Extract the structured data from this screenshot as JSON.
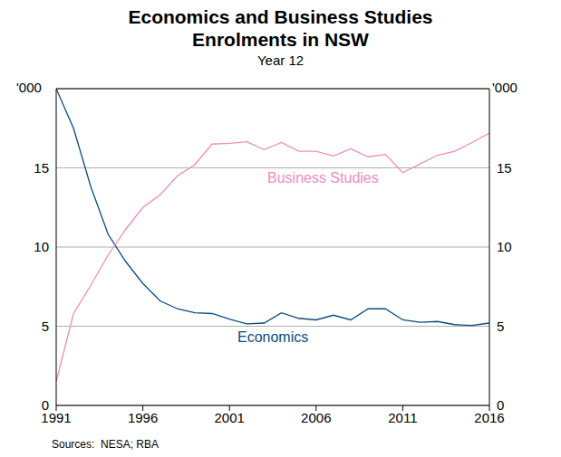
{
  "chart_data": {
    "type": "line",
    "title": "Economics and Business Studies Enrolments in NSW",
    "subtitle": "Year 12",
    "y_label": "'000",
    "source": "Sources:  NESA; RBA",
    "x": [
      1991,
      1992,
      1993,
      1994,
      1995,
      1996,
      1997,
      1998,
      1999,
      2000,
      2001,
      2002,
      2003,
      2004,
      2005,
      2006,
      2007,
      2008,
      2009,
      2010,
      2011,
      2012,
      2013,
      2014,
      2015,
      2016
    ],
    "series": [
      {
        "name": "Economics",
        "color": "#0b4a7d",
        "values": [
          20.0,
          17.5,
          13.8,
          10.8,
          9.1,
          7.7,
          6.6,
          6.1,
          5.85,
          5.8,
          5.45,
          5.15,
          5.2,
          5.85,
          5.5,
          5.4,
          5.7,
          5.4,
          6.1,
          6.1,
          5.4,
          5.25,
          5.3,
          5.1,
          5.05,
          5.2
        ]
      },
      {
        "name": "Business Studies",
        "color": "#f08cbd",
        "values": [
          1.5,
          5.8,
          7.6,
          9.5,
          11.1,
          12.5,
          13.3,
          14.5,
          15.2,
          16.5,
          16.55,
          16.65,
          16.15,
          16.6,
          16.05,
          16.05,
          15.75,
          16.2,
          15.7,
          15.85,
          14.7,
          15.25,
          15.8,
          16.05,
          16.6,
          17.2
        ]
      }
    ],
    "xlim": [
      1991,
      2016
    ],
    "xticks": [
      1991,
      1996,
      2001,
      2006,
      2011,
      2016
    ],
    "ylim": [
      0,
      20
    ],
    "yticks": [
      0,
      5,
      10,
      15
    ],
    "y2lim": [
      0,
      20
    ],
    "y2ticks": [
      0,
      5,
      10,
      15
    ],
    "grid": true
  }
}
